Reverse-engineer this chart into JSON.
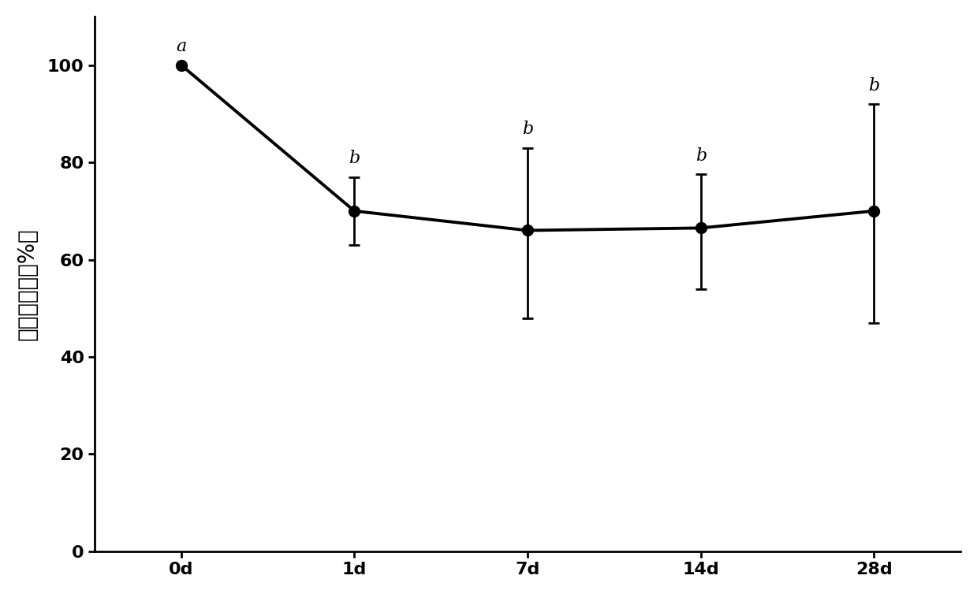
{
  "x_labels": [
    "0d",
    "1d",
    "7d",
    "14d",
    "28d"
  ],
  "x_positions": [
    0,
    1,
    2,
    3,
    4
  ],
  "y_values": [
    100,
    70,
    66,
    66.5,
    70
  ],
  "y_err_lower": [
    0,
    7,
    18,
    12.5,
    23
  ],
  "y_err_upper": [
    0,
    7,
    17,
    11,
    22
  ],
  "annotations": [
    "a",
    "b",
    "b",
    "b",
    "b"
  ],
  "ylabel": "恢复生长率（%）",
  "ylim": [
    0,
    110
  ],
  "yticks": [
    0,
    20,
    40,
    60,
    80,
    100
  ],
  "line_color": "#000000",
  "marker_color": "#000000",
  "marker_size": 10,
  "line_width": 2.8,
  "annotation_fontsize": 16,
  "ylabel_fontsize": 20,
  "tick_fontsize": 16,
  "background_color": "#ffffff",
  "capsize": 5,
  "elinewidth": 2.0,
  "annotation_x_offsets": [
    -0.08,
    -0.08,
    -0.08,
    -0.08,
    -0.08
  ],
  "annotation_y_offsets": [
    2,
    2,
    2,
    2,
    2
  ]
}
